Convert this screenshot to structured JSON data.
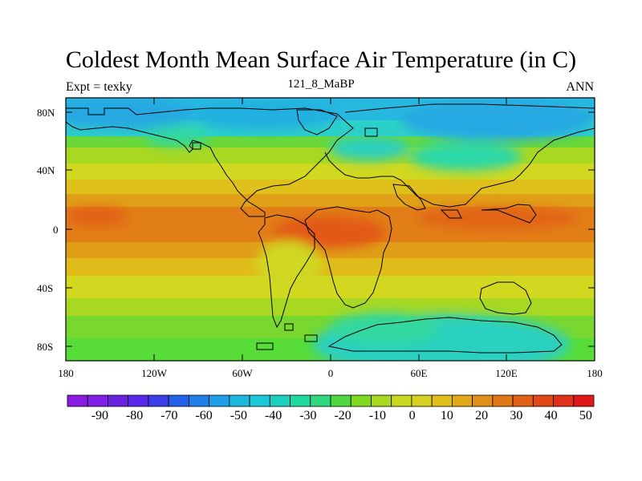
{
  "title": "Coldest Month Mean Surface Air Temperature (in C)",
  "left_label": "Expt = texky",
  "center_label": "121_8_MaBP",
  "right_label": "ANN",
  "y_ticks": [
    "80N",
    "40N",
    "0",
    "40S",
    "80S"
  ],
  "x_ticks": [
    "180",
    "120W",
    "60W",
    "0",
    "60E",
    "120E",
    "180"
  ],
  "colorbar": {
    "labels": [
      "-90",
      "-80",
      "-70",
      "-60",
      "-50",
      "-40",
      "-30",
      "-20",
      "-10",
      "0",
      "10",
      "20",
      "30",
      "40",
      "50"
    ],
    "colors": [
      "#8a1ae0",
      "#7f20e6",
      "#6a22e0",
      "#5a28e8",
      "#3c3ce8",
      "#2560e8",
      "#2080e8",
      "#1ea0e8",
      "#1cb8e0",
      "#1cc8d8",
      "#1cd0c0",
      "#20d8a0",
      "#30d880",
      "#50d840",
      "#80d820",
      "#a8d820",
      "#c8d820",
      "#d8d020",
      "#e0c018",
      "#e0a818",
      "#e09018",
      "#e07818",
      "#e06018",
      "#e04818",
      "#e03018",
      "#e01818"
    ]
  },
  "map": {
    "colors": {
      "cyan": "#27c0d8",
      "teal": "#24cfc0",
      "aqua_green": "#2cdc9a",
      "green": "#58dc38",
      "yellow_green": "#9ad822",
      "yellow": "#d0d820",
      "gold": "#e0bc1a",
      "orange": "#e09a18",
      "dark_orange": "#e27a18",
      "red_orange": "#e25c18",
      "blue": "#26a8e2"
    }
  }
}
